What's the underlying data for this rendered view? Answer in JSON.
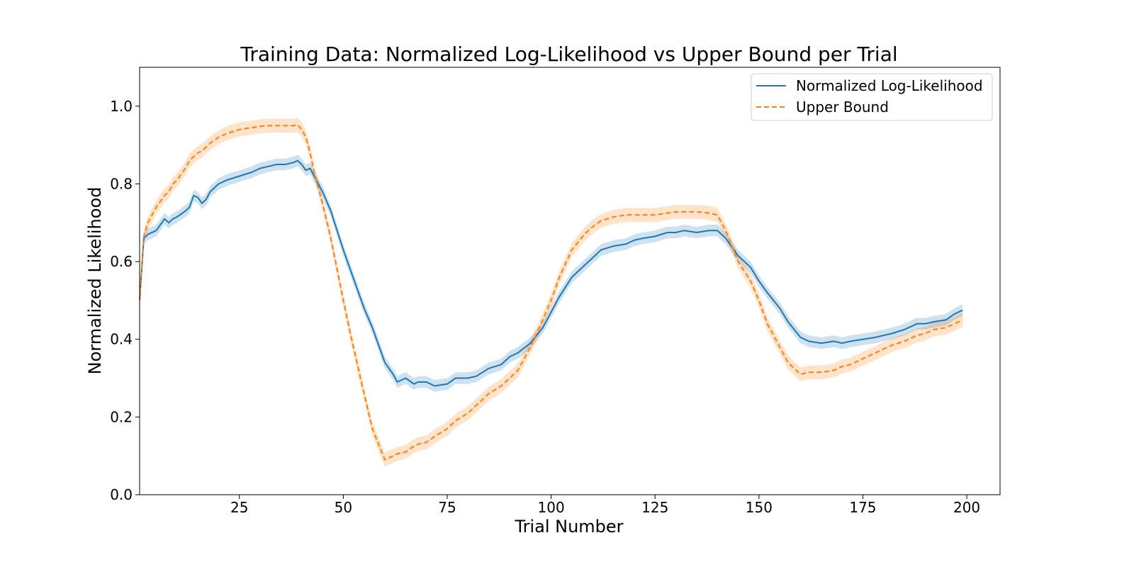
{
  "chart_data": {
    "type": "line",
    "title": "Training Data: Normalized Log-Likelihood vs Upper Bound per Trial",
    "xlabel": "Trial Number",
    "ylabel": "Normalized Likelihood",
    "xlim": [
      1,
      208
    ],
    "ylim": [
      0,
      1.1
    ],
    "x_ticks": [
      25,
      50,
      75,
      100,
      125,
      150,
      175,
      200
    ],
    "x_tick_labels": [
      "25",
      "50",
      "75",
      "100",
      "125",
      "150",
      "175",
      "200"
    ],
    "y_ticks": [
      0,
      0.2,
      0.4,
      0.6,
      0.8,
      1.0
    ],
    "y_tick_labels": [
      "0.0",
      "0.2",
      "0.4",
      "0.6",
      "0.8",
      "1.0"
    ],
    "grid": false,
    "legend_position": "top-right",
    "series": [
      {
        "name": "Normalized Log-Likelihood",
        "color": "#1f77b4",
        "band_color": "#1f77b4",
        "line_style": "solid",
        "x": [
          1,
          2,
          3,
          5,
          7,
          8,
          9,
          10,
          12,
          13,
          14,
          15,
          16,
          17,
          18,
          20,
          22,
          25,
          28,
          30,
          32,
          34,
          36,
          38,
          39,
          40,
          41,
          42,
          43,
          45,
          47,
          50,
          52,
          55,
          57,
          60,
          62,
          63,
          65,
          67,
          68,
          70,
          72,
          75,
          77,
          80,
          82,
          85,
          88,
          90,
          92,
          95,
          98,
          100,
          102,
          105,
          108,
          110,
          112,
          115,
          118,
          120,
          122,
          125,
          128,
          130,
          132,
          135,
          138,
          140,
          142,
          145,
          148,
          150,
          152,
          155,
          157,
          160,
          162,
          165,
          168,
          170,
          172,
          175,
          178,
          180,
          182,
          185,
          188,
          190,
          192,
          195,
          197,
          199
        ],
        "values": [
          0.5,
          0.66,
          0.67,
          0.68,
          0.71,
          0.7,
          0.71,
          0.715,
          0.73,
          0.74,
          0.77,
          0.765,
          0.75,
          0.76,
          0.78,
          0.8,
          0.81,
          0.82,
          0.83,
          0.84,
          0.845,
          0.85,
          0.85,
          0.855,
          0.86,
          0.85,
          0.835,
          0.84,
          0.82,
          0.78,
          0.73,
          0.63,
          0.57,
          0.48,
          0.43,
          0.34,
          0.31,
          0.29,
          0.3,
          0.285,
          0.29,
          0.29,
          0.28,
          0.285,
          0.3,
          0.3,
          0.305,
          0.325,
          0.335,
          0.355,
          0.365,
          0.39,
          0.43,
          0.47,
          0.51,
          0.56,
          0.59,
          0.61,
          0.63,
          0.64,
          0.645,
          0.655,
          0.66,
          0.665,
          0.675,
          0.675,
          0.68,
          0.675,
          0.68,
          0.68,
          0.66,
          0.615,
          0.585,
          0.55,
          0.52,
          0.48,
          0.445,
          0.405,
          0.395,
          0.39,
          0.395,
          0.39,
          0.395,
          0.4,
          0.405,
          0.41,
          0.415,
          0.425,
          0.44,
          0.44,
          0.445,
          0.45,
          0.465,
          0.475
        ],
        "band": 0.015
      },
      {
        "name": "Upper Bound",
        "color": "#ff7f0e",
        "band_color": "#ff7f0e",
        "line_style": "dashed",
        "x": [
          1,
          2,
          3,
          5,
          7,
          8,
          9,
          10,
          12,
          13,
          14,
          15,
          16,
          17,
          18,
          20,
          22,
          25,
          28,
          30,
          32,
          34,
          36,
          38,
          39,
          40,
          41,
          42,
          43,
          45,
          47,
          50,
          52,
          55,
          57,
          60,
          62,
          63,
          65,
          67,
          68,
          70,
          72,
          75,
          77,
          80,
          82,
          85,
          88,
          90,
          92,
          95,
          98,
          100,
          102,
          105,
          108,
          110,
          112,
          115,
          118,
          120,
          122,
          125,
          128,
          130,
          132,
          135,
          138,
          140,
          142,
          145,
          148,
          150,
          152,
          155,
          157,
          160,
          162,
          165,
          168,
          170,
          172,
          175,
          178,
          180,
          182,
          185,
          188,
          190,
          192,
          195,
          197,
          199
        ],
        "values": [
          0.5,
          0.665,
          0.7,
          0.74,
          0.77,
          0.78,
          0.8,
          0.81,
          0.84,
          0.86,
          0.87,
          0.88,
          0.885,
          0.895,
          0.905,
          0.92,
          0.93,
          0.94,
          0.945,
          0.948,
          0.95,
          0.95,
          0.95,
          0.95,
          0.952,
          0.94,
          0.92,
          0.88,
          0.83,
          0.75,
          0.66,
          0.5,
          0.4,
          0.26,
          0.17,
          0.09,
          0.1,
          0.105,
          0.11,
          0.125,
          0.13,
          0.135,
          0.15,
          0.17,
          0.19,
          0.21,
          0.23,
          0.26,
          0.28,
          0.3,
          0.32,
          0.38,
          0.45,
          0.5,
          0.56,
          0.63,
          0.67,
          0.69,
          0.705,
          0.715,
          0.72,
          0.72,
          0.72,
          0.72,
          0.725,
          0.728,
          0.728,
          0.728,
          0.725,
          0.72,
          0.68,
          0.6,
          0.55,
          0.5,
          0.44,
          0.38,
          0.34,
          0.31,
          0.315,
          0.315,
          0.32,
          0.33,
          0.335,
          0.35,
          0.365,
          0.375,
          0.385,
          0.395,
          0.41,
          0.415,
          0.425,
          0.43,
          0.44,
          0.45
        ],
        "band": 0.018
      }
    ]
  }
}
